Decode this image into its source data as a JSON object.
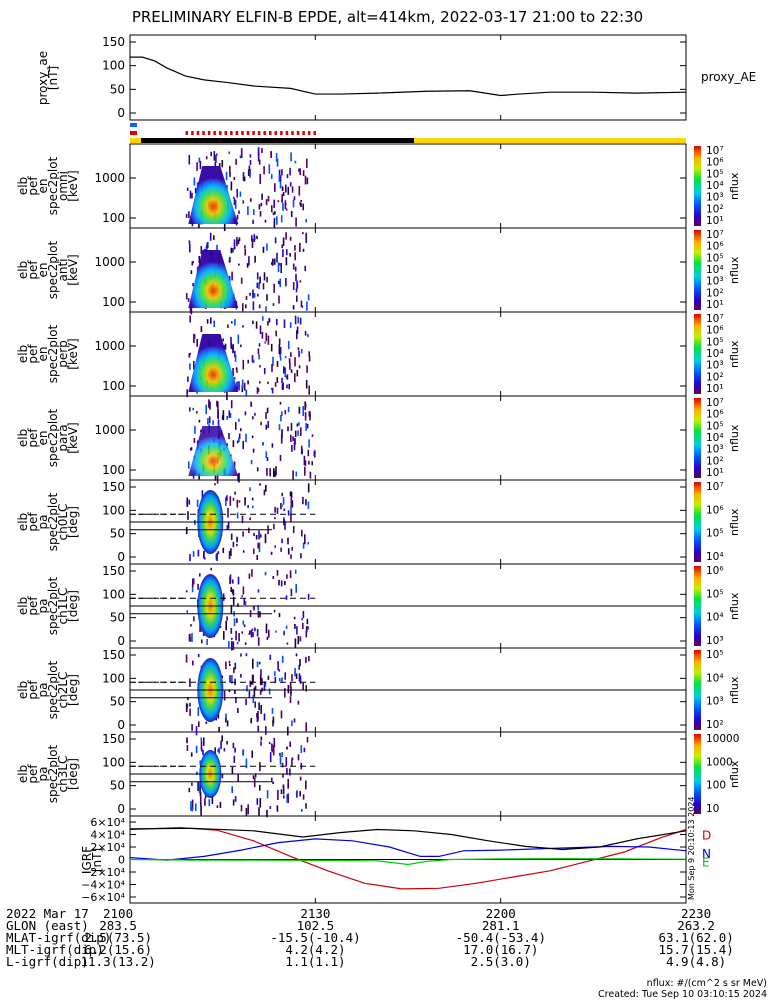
{
  "title": "PRELIMINARY ELFIN-B EPDE, alt=414km, 2022-03-17 21:00 to 22:30",
  "time_ticks": [
    "2100",
    "2130",
    "2200",
    "2230"
  ],
  "panels": [
    {
      "id": "ae",
      "ylabel_lines": [
        "proxy_ae",
        "[nT]"
      ],
      "yticks": [
        "150",
        "100",
        "50",
        "0"
      ],
      "right_label": "proxy_AE"
    },
    {
      "id": "omni",
      "ylabel_lines": [
        "elb",
        "pef",
        "en",
        "spec2plot",
        "omni",
        "[keV]"
      ],
      "yticks": [
        "1000",
        "100"
      ]
    },
    {
      "id": "anti",
      "ylabel_lines": [
        "elb",
        "pef",
        "en",
        "spec2plot",
        "anti",
        "[keV]"
      ],
      "yticks": [
        "1000",
        "100"
      ]
    },
    {
      "id": "perp",
      "ylabel_lines": [
        "elb",
        "pef",
        "en",
        "spec2plot",
        "perp",
        "[keV]"
      ],
      "yticks": [
        "1000",
        "100"
      ]
    },
    {
      "id": "para",
      "ylabel_lines": [
        "elb",
        "pef",
        "en",
        "spec2plot",
        "para",
        "[keV]"
      ],
      "yticks": [
        "1000",
        "100"
      ]
    },
    {
      "id": "ch0",
      "ylabel_lines": [
        "elb",
        "pef",
        "pa",
        "spec2plot",
        "ch0LC",
        "[deg]"
      ],
      "yticks": [
        "150",
        "100",
        "50",
        "0"
      ]
    },
    {
      "id": "ch1",
      "ylabel_lines": [
        "elb",
        "pef",
        "pa",
        "spec2plot",
        "ch1LC",
        "[deg]"
      ],
      "yticks": [
        "150",
        "100",
        "50",
        "0"
      ]
    },
    {
      "id": "ch2",
      "ylabel_lines": [
        "elb",
        "pef",
        "pa",
        "spec2plot",
        "ch2LC",
        "[deg]"
      ],
      "yticks": [
        "150",
        "100",
        "50",
        "0"
      ]
    },
    {
      "id": "ch3",
      "ylabel_lines": [
        "elb",
        "pef",
        "pa",
        "spec2plot",
        "ch3LC",
        "[deg]"
      ],
      "yticks": [
        "150",
        "100",
        "50",
        "0"
      ]
    },
    {
      "id": "igrf",
      "ylabel_lines": [
        "IGRF",
        "[nT]"
      ],
      "yticks": [
        "6×10⁴",
        "4×10⁴",
        "2×10⁴",
        "0",
        "−2×10⁴",
        "−4×10⁴",
        "−6×10⁴"
      ]
    }
  ],
  "colorbars": [
    {
      "label": "nflux",
      "ticks": [
        "10⁷",
        "10⁶",
        "10⁵",
        "10⁴",
        "10³",
        "10²",
        "10¹"
      ]
    },
    {
      "label": "nflux",
      "ticks": [
        "10⁷",
        "10⁶",
        "10⁵",
        "10⁴",
        "10³",
        "10²",
        "10¹"
      ]
    },
    {
      "label": "nflux",
      "ticks": [
        "10⁷",
        "10⁶",
        "10⁵",
        "10⁴",
        "10³",
        "10²",
        "10¹"
      ]
    },
    {
      "label": "nflux",
      "ticks": [
        "10⁷",
        "10⁶",
        "10⁵",
        "10⁴",
        "10³",
        "10²",
        "10¹"
      ]
    },
    {
      "label": "nflux",
      "ticks": [
        "10⁷",
        "10⁶",
        "10⁵",
        "10⁴"
      ]
    },
    {
      "label": "nflux",
      "ticks": [
        "10⁶",
        "10⁵",
        "10⁴",
        "10³"
      ]
    },
    {
      "label": "nflux",
      "ticks": [
        "10⁵",
        "10⁴",
        "10³",
        "10²"
      ]
    },
    {
      "label": "nflux",
      "ticks": [
        "10000",
        "1000",
        "100",
        "10"
      ]
    }
  ],
  "igrf_legend": [
    "D",
    "N",
    "E"
  ],
  "igrf_side_text": "Mon Sep 9 20:10:13 2024",
  "footer": {
    "rows": [
      {
        "label": "2022 Mar 17",
        "values": [
          "2100",
          "2130",
          "2200",
          "2230"
        ]
      },
      {
        "label": "GLON (east)",
        "values": [
          "283.5",
          "102.5",
          "281.1",
          "263.2"
        ]
      },
      {
        "label": "MLAT-igrf(dip)",
        "values": [
          "2.5(73.5)",
          "-15.5(-10.4)",
          "-50.4(-53.4)",
          "63.1(62.0)"
        ]
      },
      {
        "label": "MLT-igrf(dip)",
        "values": [
          "6.2(15.6)",
          "4.2(4.2)",
          "17.0(16.7)",
          "15.7(15.4)"
        ]
      },
      {
        "label": "L-igrf(dip)",
        "values": [
          "11.3(13.2)",
          "1.1(1.1)",
          "2.5(3.0)",
          "4.9(4.8)"
        ]
      }
    ],
    "units_note": "nflux: #/(cm^2 s sr MeV)",
    "created_note": "Created: Tue Sep 10 03:10:15 2024"
  },
  "chart_data": {
    "type": "line",
    "x_range_minutes": [
      0,
      90
    ],
    "series": [
      {
        "name": "proxy_AE",
        "x": [
          0,
          2,
          4,
          6,
          9,
          12,
          16,
          20,
          26,
          30,
          34,
          40,
          48,
          55,
          60,
          63,
          68,
          75,
          82,
          90
        ],
        "values": [
          118,
          118,
          110,
          95,
          78,
          70,
          64,
          57,
          52,
          40,
          40,
          42,
          46,
          47,
          37,
          40,
          44,
          44,
          42,
          44
        ]
      }
    ],
    "ae_ylim": [
      0,
      150
    ],
    "igrf": {
      "ylim": [
        -60000,
        60000
      ],
      "series": [
        {
          "name": "D",
          "color": "#cc0000",
          "x": [
            0,
            8,
            14,
            20,
            26,
            32,
            38,
            44,
            50,
            56,
            62,
            68,
            74,
            80,
            86,
            90
          ],
          "values": [
            48000,
            51000,
            47000,
            30000,
            5000,
            -18000,
            -38000,
            -47000,
            -46000,
            -38000,
            -28000,
            -18000,
            -3000,
            12000,
            35000,
            48000
          ]
        },
        {
          "name": "N",
          "color": "#0000dd",
          "x": [
            0,
            6,
            12,
            18,
            24,
            30,
            36,
            42,
            47,
            50,
            54,
            60,
            66,
            72,
            78,
            84,
            90
          ],
          "values": [
            3000,
            -1000,
            5000,
            15000,
            27000,
            33000,
            30000,
            20000,
            5000,
            5000,
            14000,
            15000,
            17000,
            19000,
            21000,
            20000,
            14000
          ]
        },
        {
          "name": "E",
          "color": "#00cc00",
          "x": [
            0,
            10,
            20,
            30,
            40,
            45,
            48,
            52,
            60,
            70,
            80,
            90
          ],
          "values": [
            0,
            -1000,
            -1000,
            -1500,
            -2000,
            -8000,
            -3000,
            0,
            1000,
            1500,
            1000,
            500
          ]
        },
        {
          "name": "total",
          "color": "#000000",
          "x": [
            0,
            10,
            20,
            28,
            34,
            40,
            46,
            52,
            58,
            64,
            70,
            76,
            82,
            90
          ],
          "values": [
            49000,
            50000,
            46000,
            36000,
            43000,
            48000,
            46000,
            40000,
            30000,
            21000,
            16000,
            20000,
            33000,
            46000
          ]
        }
      ]
    },
    "spectrogram": {
      "burst_minutes": [
        9,
        30
      ],
      "peak_minute": 13,
      "energy_range_keV": [
        50,
        8000
      ],
      "pitch_angle_range_deg": [
        0,
        180
      ],
      "loss_cone_lines_deg": [
        90,
        110,
        70
      ]
    }
  }
}
